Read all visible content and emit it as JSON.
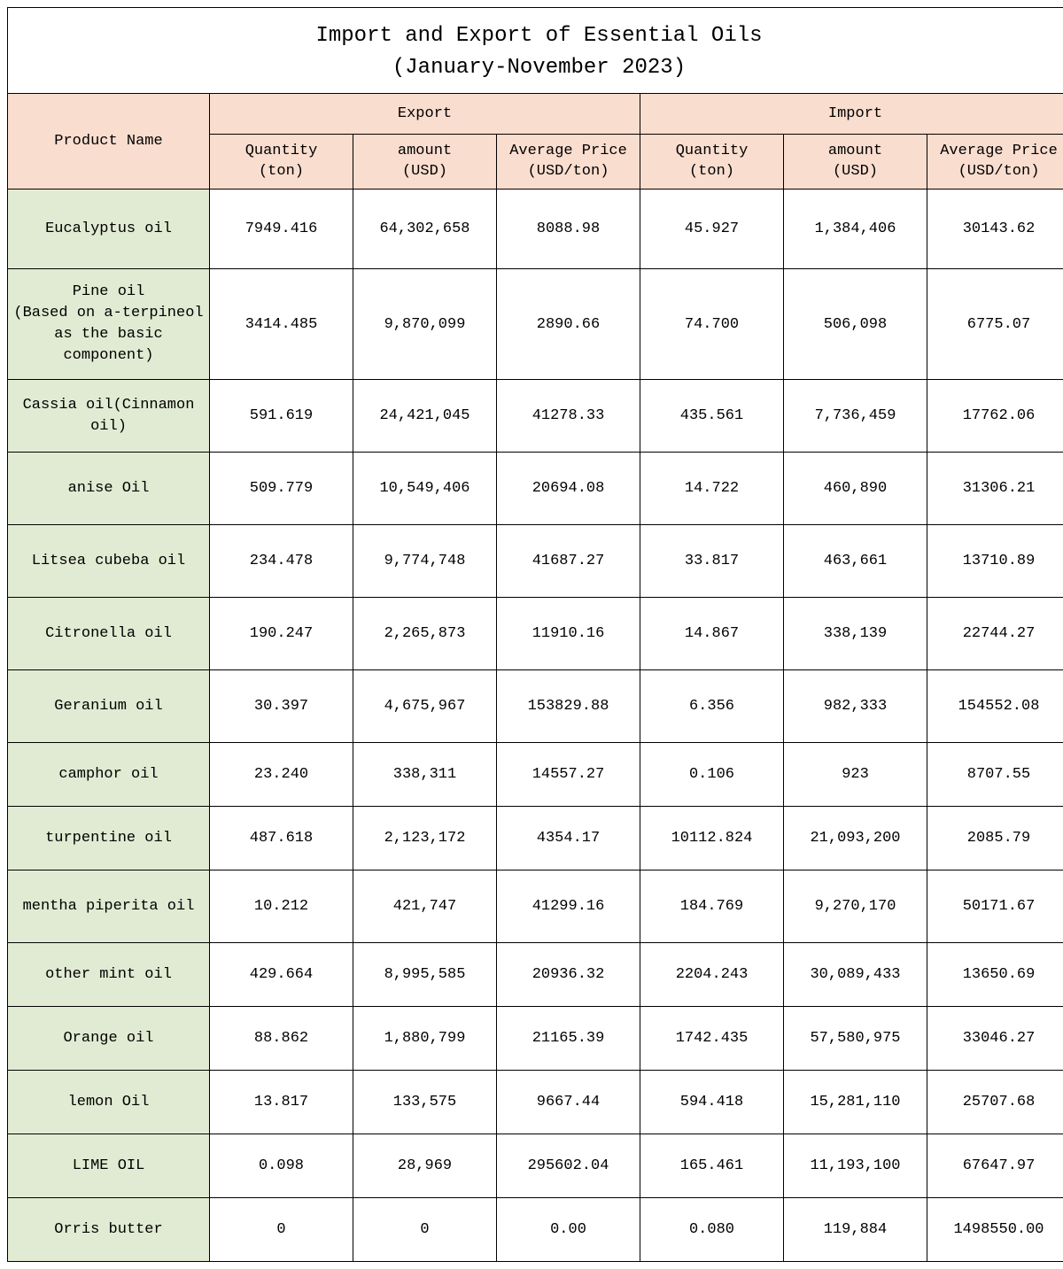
{
  "title_line1": "Import and Export of Essential Oils",
  "title_line2": "(January-November 2023)",
  "headers": {
    "product": "Product Name",
    "export": "Export",
    "import": "Import",
    "qty": "Quantity\n(ton)",
    "amt": "amount\n(USD)",
    "avg": "Average Price\n(USD/ton)"
  },
  "colors": {
    "header_bg": "#f9ddcf",
    "product_bg": "#e1ebd3",
    "border": "#000000",
    "background": "#ffffff"
  },
  "rows": [
    {
      "name": "Eucalyptus oil",
      "eq": "7949.416",
      "ea": "64,302,658",
      "ep": "8088.98",
      "iq": "45.927",
      "ia": "1,384,406",
      "ip": "30143.62",
      "cls": "med"
    },
    {
      "name": "Pine oil\n(Based on a-terpineol as the basic component)",
      "eq": "3414.485",
      "ea": "9,870,099",
      "ep": "2890.66",
      "iq": "74.700",
      "ia": "506,098",
      "ip": "6775.07",
      "cls": "tall"
    },
    {
      "name": "Cassia oil(Cinnamon oil)",
      "eq": "591.619",
      "ea": "24,421,045",
      "ep": "41278.33",
      "iq": "435.561",
      "ia": "7,736,459",
      "ip": "17762.06",
      "cls": ""
    },
    {
      "name": "anise Oil",
      "eq": "509.779",
      "ea": "10,549,406",
      "ep": "20694.08",
      "iq": "14.722",
      "ia": "460,890",
      "ip": "31306.21",
      "cls": ""
    },
    {
      "name": "Litsea cubeba oil",
      "eq": "234.478",
      "ea": "9,774,748",
      "ep": "41687.27",
      "iq": "33.817",
      "ia": "463,661",
      "ip": "13710.89",
      "cls": ""
    },
    {
      "name": "Citronella oil",
      "eq": "190.247",
      "ea": "2,265,873",
      "ep": "11910.16",
      "iq": "14.867",
      "ia": "338,139",
      "ip": "22744.27",
      "cls": ""
    },
    {
      "name": "Geranium oil",
      "eq": "30.397",
      "ea": "4,675,967",
      "ep": "153829.88",
      "iq": "6.356",
      "ia": "982,333",
      "ip": "154552.08",
      "cls": ""
    },
    {
      "name": "camphor oil",
      "eq": "23.240",
      "ea": "338,311",
      "ep": "14557.27",
      "iq": "0.106",
      "ia": "923",
      "ip": "8707.55",
      "cls": "short"
    },
    {
      "name": "turpentine oil",
      "eq": "487.618",
      "ea": "2,123,172",
      "ep": "4354.17",
      "iq": "10112.824",
      "ia": "21,093,200",
      "ip": "2085.79",
      "cls": "short"
    },
    {
      "name": "mentha piperita oil",
      "eq": "10.212",
      "ea": "421,747",
      "ep": "41299.16",
      "iq": "184.769",
      "ia": "9,270,170",
      "ip": "50171.67",
      "cls": ""
    },
    {
      "name": "other mint oil",
      "eq": "429.664",
      "ea": "8,995,585",
      "ep": "20936.32",
      "iq": "2204.243",
      "ia": "30,089,433",
      "ip": "13650.69",
      "cls": "short"
    },
    {
      "name": "Orange oil",
      "eq": "88.862",
      "ea": "1,880,799",
      "ep": "21165.39",
      "iq": "1742.435",
      "ia": "57,580,975",
      "ip": "33046.27",
      "cls": "short"
    },
    {
      "name": "lemon Oil",
      "eq": "13.817",
      "ea": "133,575",
      "ep": "9667.44",
      "iq": "594.418",
      "ia": "15,281,110",
      "ip": "25707.68",
      "cls": "short"
    },
    {
      "name": "LIME OIL",
      "eq": "0.098",
      "ea": "28,969",
      "ep": "295602.04",
      "iq": "165.461",
      "ia": "11,193,100",
      "ip": "67647.97",
      "cls": "short"
    },
    {
      "name": "Orris butter",
      "eq": "0",
      "ea": "0",
      "ep": "0.00",
      "iq": "0.080",
      "ia": "119,884",
      "ip": "1498550.00",
      "cls": "short"
    }
  ]
}
